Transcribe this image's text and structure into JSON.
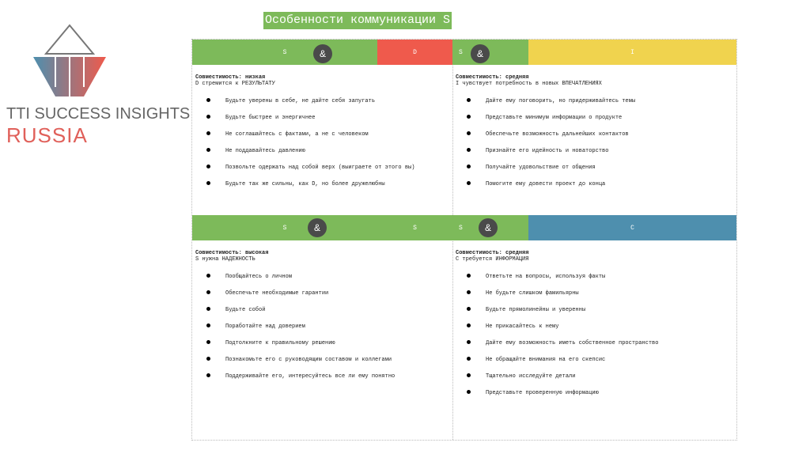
{
  "title": "Особенности коммуникации S",
  "logo": {
    "line1": "TTI SUCCESS INSIGHTS",
    "line2": "RUSSIA"
  },
  "colors": {
    "S": "#7dba5a",
    "D": "#ef5a4c",
    "I": "#f0d34e",
    "C": "#4e8fae",
    "amp": "#4a4a4a"
  },
  "quadrants": [
    {
      "header": [
        "S",
        "D"
      ],
      "amp": "&",
      "compat": "Совместимость: низкая",
      "need": "D стремится к РЕЗУЛЬТАТУ",
      "items": [
        "Будьте уверены в себе, не дайте себя запугать",
        "Будьте быстрее и энергичнее",
        "Не соглашайтесь с фактами, а не с человеком",
        "Не поддавайтесь давлению",
        "Позвольте одержать над собой верх (выиграете от этого вы)",
        "Будьте так же сильны, как D, но более дружелюбны"
      ]
    },
    {
      "header": [
        "S",
        "I"
      ],
      "amp": "&",
      "compat": "Совместимость: средняя",
      "need": "I чувствует потребность в новых ВПЕЧАТЛЕНИЯХ",
      "items": [
        "Дайте ему поговорить, но придерживайтесь темы",
        "Представьте минимум информации о продукте",
        "Обеспечьте возможность дальнейших контактов",
        "Признайте его идейность и новаторство",
        "Получайте удовольствие от общения",
        "Помогите ему довести проект до конца"
      ]
    },
    {
      "header": [
        "S",
        "S"
      ],
      "amp": "&",
      "compat": "Совместимость: высокая",
      "need": "S нужна НАДЕЖНОСТЬ",
      "items": [
        "Пообщайтесь о личном",
        "Обеспечьте необходимые гарантии",
        "Будьте собой",
        "Поработайте над доверием",
        "Подтолкните к правильному решению",
        "Познакомьте его с руководящим составом и коллегами",
        "Поддерживайте его, интересуйтесь все ли ему понятно"
      ]
    },
    {
      "header": [
        "S",
        "C"
      ],
      "amp": "&",
      "compat": "Совместимость: средняя",
      "need": "C требуется ИНФОРМАЦИЯ",
      "items": [
        "Ответьте на вопросы, используя факты",
        "Не будьте слишком фамильярны",
        "Будьте прямолинейны и уверенны",
        "Не прикасайтесь к нему",
        "Дайте ему возможность иметь собственное пространство",
        "Не обращайте внимания на его скепсис",
        "Тщательно исследуйте детали",
        "Представьте проверенную информацию"
      ]
    }
  ]
}
